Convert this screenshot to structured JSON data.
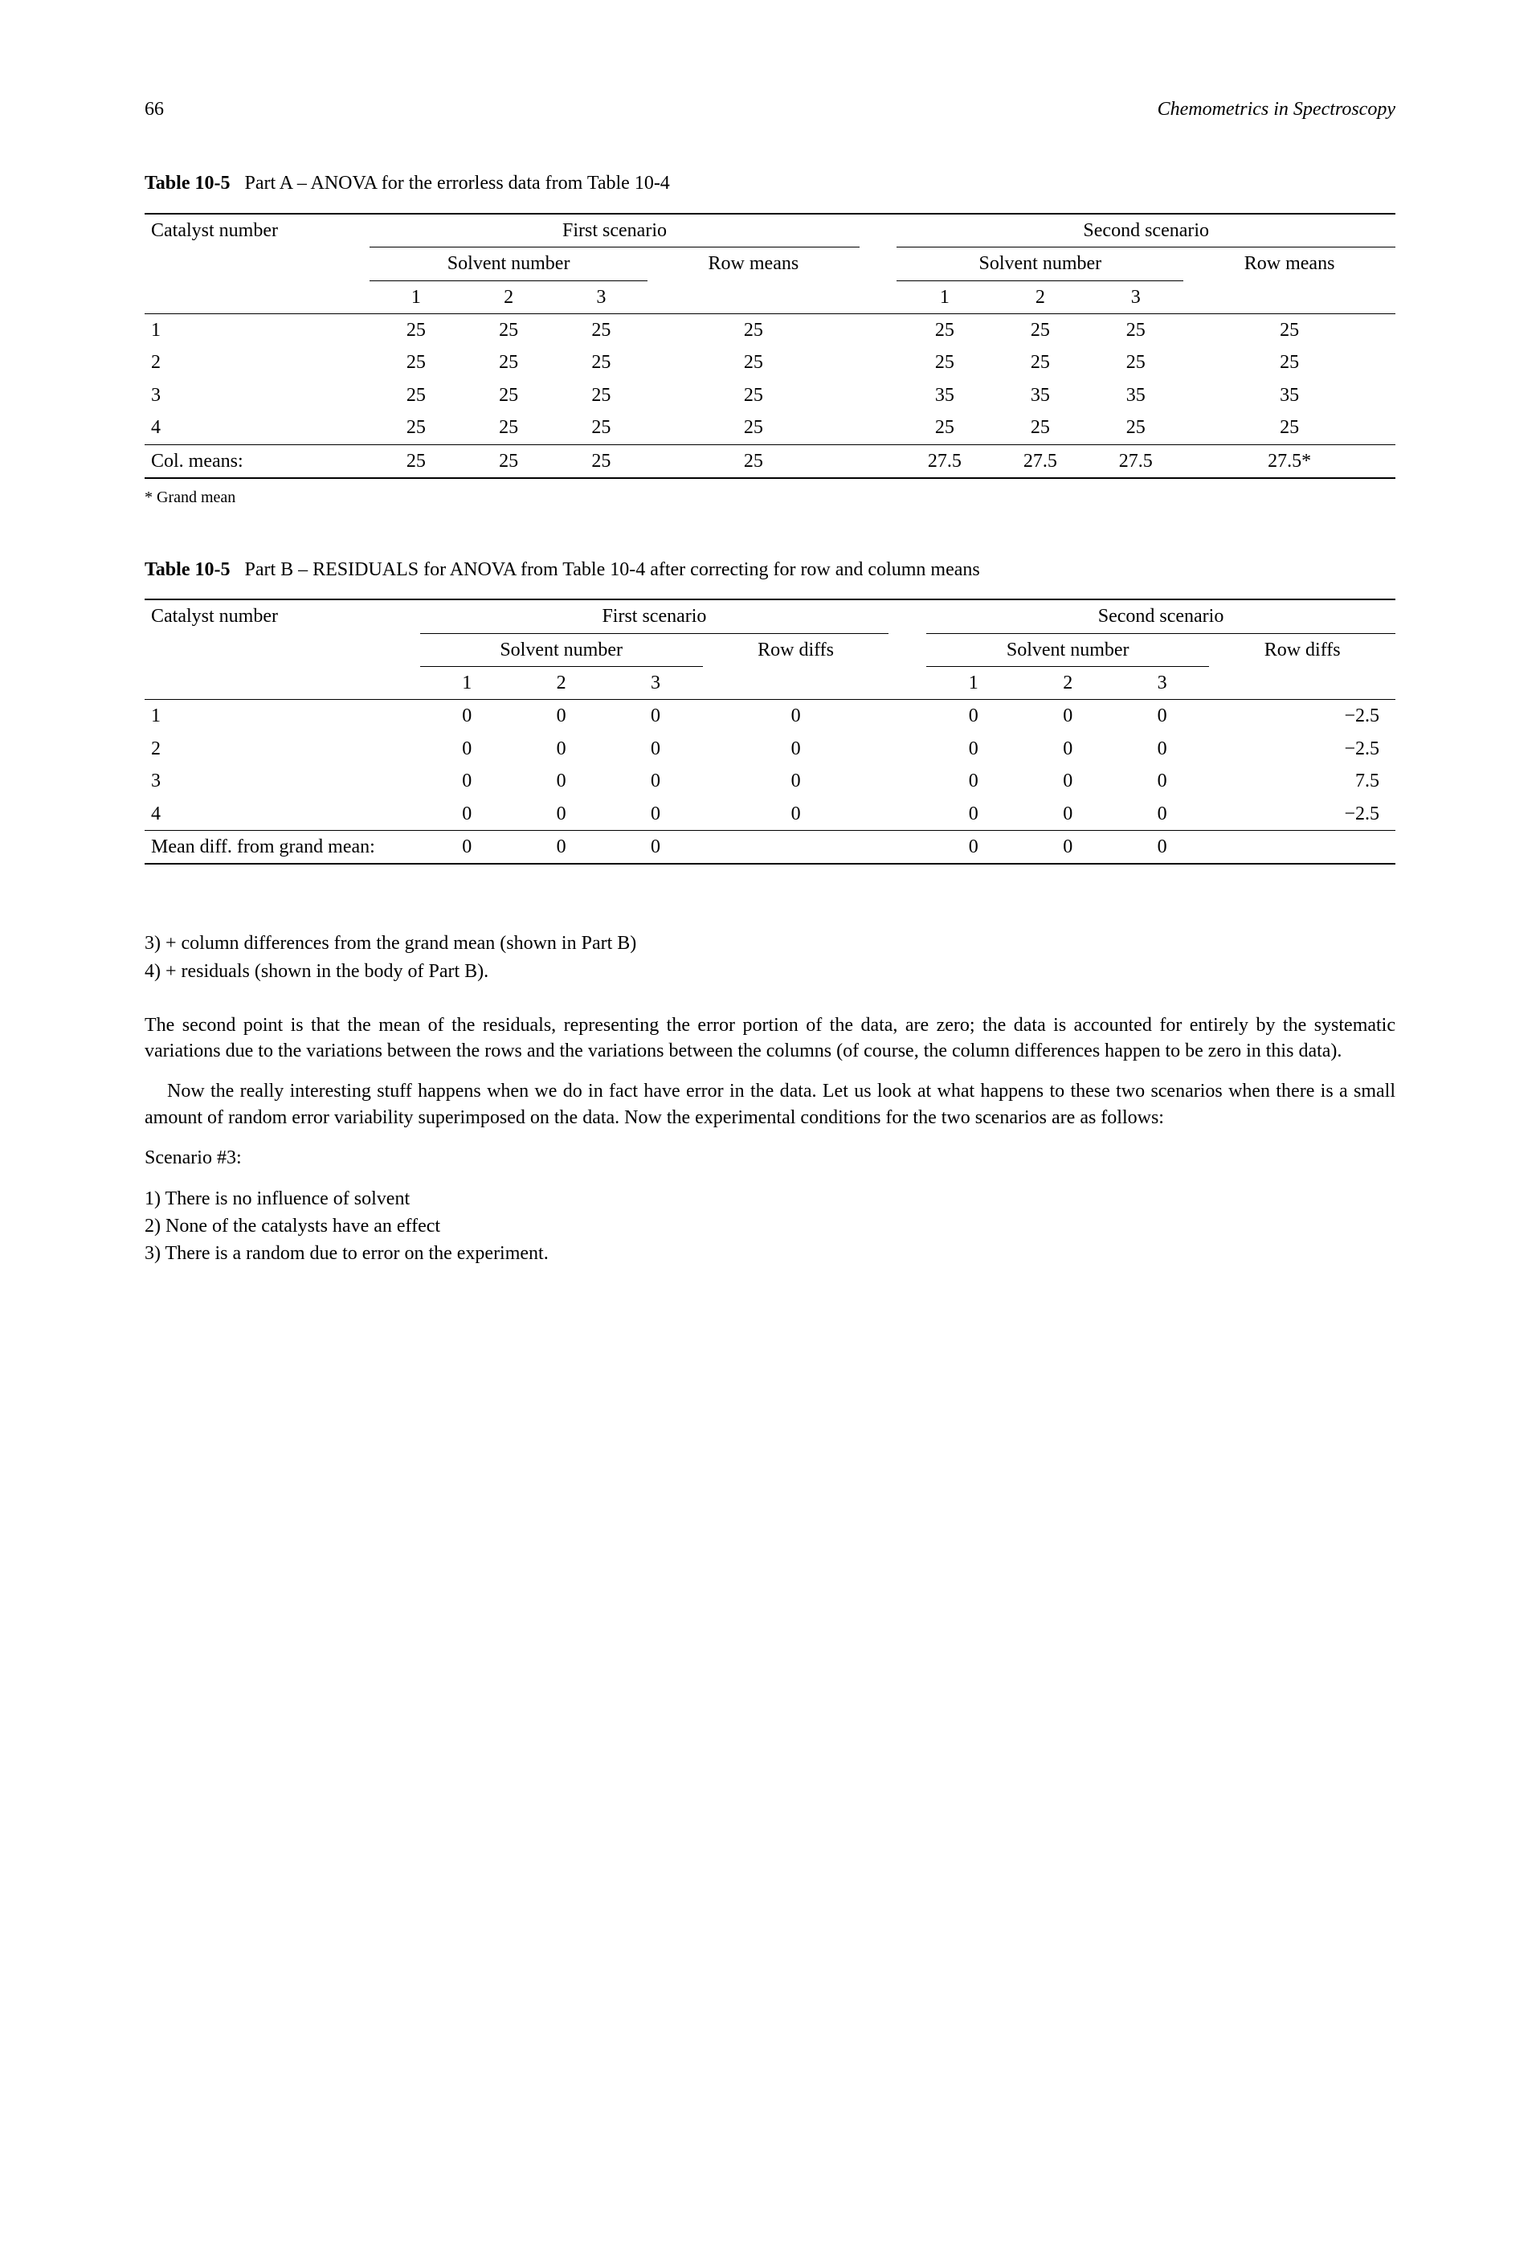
{
  "header": {
    "page_number": "66",
    "book_title": "Chemometrics in Spectroscopy"
  },
  "tableA": {
    "label": "Table 10-5",
    "caption": "Part A – ANOVA for the errorless data from Table 10-4",
    "row_header": "Catalyst number",
    "scenario1": "First scenario",
    "scenario2": "Second scenario",
    "solvent_header": "Solvent number",
    "row_means": "Row means",
    "cols": [
      "1",
      "2",
      "3"
    ],
    "rows": [
      {
        "label": "1",
        "s1": [
          "25",
          "25",
          "25"
        ],
        "s1m": "25",
        "s2": [
          "25",
          "25",
          "25"
        ],
        "s2m": "25"
      },
      {
        "label": "2",
        "s1": [
          "25",
          "25",
          "25"
        ],
        "s1m": "25",
        "s2": [
          "25",
          "25",
          "25"
        ],
        "s2m": "25"
      },
      {
        "label": "3",
        "s1": [
          "25",
          "25",
          "25"
        ],
        "s1m": "25",
        "s2": [
          "35",
          "35",
          "35"
        ],
        "s2m": "35"
      },
      {
        "label": "4",
        "s1": [
          "25",
          "25",
          "25"
        ],
        "s1m": "25",
        "s2": [
          "25",
          "25",
          "25"
        ],
        "s2m": "25"
      }
    ],
    "col_means_label": "Col. means:",
    "col_means": {
      "s1": [
        "25",
        "25",
        "25"
      ],
      "s1m": "25",
      "s2": [
        "27.5",
        "27.5",
        "27.5"
      ],
      "s2m": "27.5*"
    },
    "footnote": "* Grand mean"
  },
  "tableB": {
    "label": "Table 10-5",
    "caption": "Part B – RESIDUALS for ANOVA from Table 10-4 after correcting for row and column means",
    "row_header": "Catalyst number",
    "scenario1": "First scenario",
    "scenario2": "Second scenario",
    "solvent_header": "Solvent number",
    "row_diffs": "Row diffs",
    "cols": [
      "1",
      "2",
      "3"
    ],
    "rows": [
      {
        "label": "1",
        "s1": [
          "0",
          "0",
          "0"
        ],
        "s1d": "0",
        "s2": [
          "0",
          "0",
          "0"
        ],
        "s2d": "−2.5"
      },
      {
        "label": "2",
        "s1": [
          "0",
          "0",
          "0"
        ],
        "s1d": "0",
        "s2": [
          "0",
          "0",
          "0"
        ],
        "s2d": "−2.5"
      },
      {
        "label": "3",
        "s1": [
          "0",
          "0",
          "0"
        ],
        "s1d": "0",
        "s2": [
          "0",
          "0",
          "0"
        ],
        "s2d": "7.5"
      },
      {
        "label": "4",
        "s1": [
          "0",
          "0",
          "0"
        ],
        "s1d": "0",
        "s2": [
          "0",
          "0",
          "0"
        ],
        "s2d": "−2.5"
      }
    ],
    "mean_diff_label": "Mean diff. from grand mean:",
    "mean_diff": {
      "s1": [
        "0",
        "0",
        "0"
      ],
      "s2": [
        "0",
        "0",
        "0"
      ]
    }
  },
  "body": {
    "line3": "3)  + column differences from the grand mean (shown in Part B)",
    "line4": "4)  + residuals (shown in the body of Part B).",
    "para1": "The second point is that the mean of the residuals, representing the error portion of the data, are zero; the data is accounted for entirely by the systematic variations due to the variations between the rows and the variations between the columns (of course, the column differences happen to be zero in this data).",
    "para2": "Now the really interesting stuff happens when we do in fact have error in the data. Let us look at what happens to these two scenarios when there is a small amount of random error variability superimposed on the data. Now the experimental conditions for the two scenarios are as follows:",
    "scenario_label": "Scenario #3:",
    "s3_1": "1)  There is no influence of solvent",
    "s3_2": "2)  None of the catalysts have an effect",
    "s3_3": "3)  There is a random due to error on the experiment."
  }
}
